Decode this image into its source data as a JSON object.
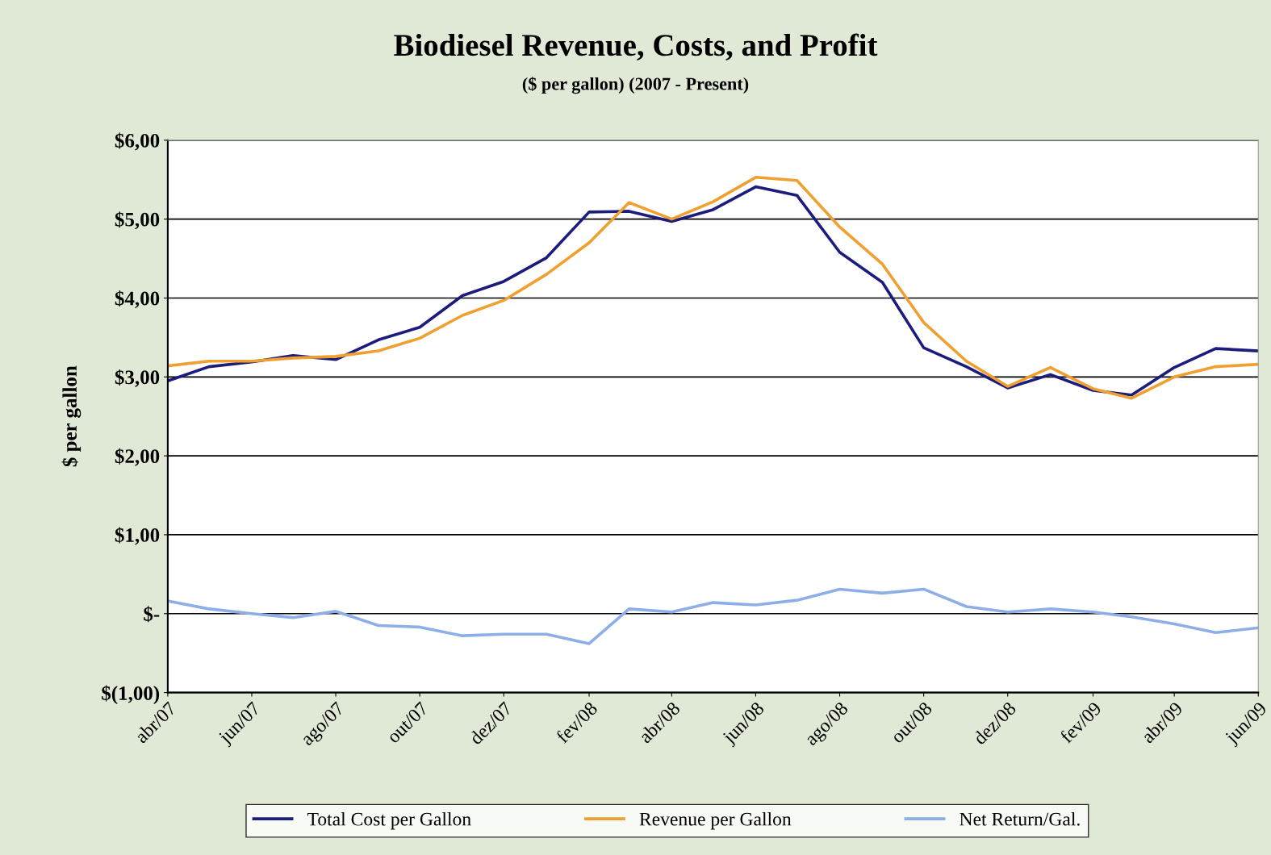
{
  "chart_data": {
    "type": "line",
    "title": "Biodiesel Revenue, Costs, and Profit",
    "subtitle": "($ per gallon) (2007 - Present)",
    "ylabel": "$ per gallon",
    "x": [
      "2007-04",
      "2007-05",
      "2007-06",
      "2007-07",
      "2007-08",
      "2007-09",
      "2007-10",
      "2007-11",
      "2007-12",
      "2008-01",
      "2008-02",
      "2008-03",
      "2008-04",
      "2008-05",
      "2008-06",
      "2008-07",
      "2008-08",
      "2008-09",
      "2008-10",
      "2008-11",
      "2008-12",
      "2009-01",
      "2009-02",
      "2009-03",
      "2009-04",
      "2009-05",
      "2009-06"
    ],
    "series": [
      {
        "name": "Total Cost per Gallon",
        "color": "#1c1c7c",
        "values": [
          2.95,
          3.13,
          3.19,
          3.27,
          3.22,
          3.47,
          3.63,
          4.03,
          4.21,
          4.51,
          5.09,
          5.1,
          4.97,
          5.12,
          5.41,
          5.3,
          4.58,
          4.2,
          3.37,
          3.13,
          2.86,
          3.03,
          2.83,
          2.77,
          3.12,
          3.36,
          3.33
        ]
      },
      {
        "name": "Revenue per Gallon",
        "color": "#f0a030",
        "values": [
          3.14,
          3.2,
          3.2,
          3.24,
          3.26,
          3.33,
          3.49,
          3.78,
          3.97,
          4.3,
          4.7,
          5.21,
          5.0,
          5.22,
          5.53,
          5.49,
          4.9,
          4.43,
          3.69,
          3.2,
          2.88,
          3.12,
          2.85,
          2.73,
          3.0,
          3.13,
          3.16
        ]
      },
      {
        "name": "Net Return/Gal.",
        "color": "#8eaee8",
        "values": [
          0.16,
          0.06,
          0.0,
          -0.05,
          0.03,
          -0.15,
          -0.17,
          -0.28,
          -0.26,
          -0.26,
          -0.38,
          0.06,
          0.02,
          0.14,
          0.11,
          0.17,
          0.31,
          0.26,
          0.31,
          0.09,
          0.02,
          0.06,
          0.02,
          -0.04,
          -0.13,
          -0.24,
          -0.18
        ]
      }
    ],
    "xlim": [
      "2007-04",
      "2009-06"
    ],
    "xticks": [
      {
        "value": "2007-04",
        "label": "abr/07"
      },
      {
        "value": "2007-06",
        "label": "jun/07"
      },
      {
        "value": "2007-08",
        "label": "ago/07"
      },
      {
        "value": "2007-10",
        "label": "out/07"
      },
      {
        "value": "2007-12",
        "label": "dez/07"
      },
      {
        "value": "2008-02",
        "label": "fev/08"
      },
      {
        "value": "2008-04",
        "label": "abr/08"
      },
      {
        "value": "2008-06",
        "label": "jun/08"
      },
      {
        "value": "2008-08",
        "label": "ago/08"
      },
      {
        "value": "2008-10",
        "label": "out/08"
      },
      {
        "value": "2008-12",
        "label": "dez/08"
      },
      {
        "value": "2009-02",
        "label": "fev/09"
      },
      {
        "value": "2009-04",
        "label": "abr/09"
      },
      {
        "value": "2009-06",
        "label": "jun/09"
      }
    ],
    "ylim": [
      -1,
      6
    ],
    "yticks": [
      {
        "value": -1,
        "label": "$(1,00)"
      },
      {
        "value": 0,
        "label": "$-"
      },
      {
        "value": 1,
        "label": "$1,00"
      },
      {
        "value": 2,
        "label": "$2,00"
      },
      {
        "value": 3,
        "label": "$3,00"
      },
      {
        "value": 4,
        "label": "$4,00"
      },
      {
        "value": 5,
        "label": "$5,00"
      },
      {
        "value": 6,
        "label": "$6,00"
      }
    ],
    "grid": "y",
    "legend": "bottom",
    "marker": "none",
    "line_style": "solid"
  }
}
